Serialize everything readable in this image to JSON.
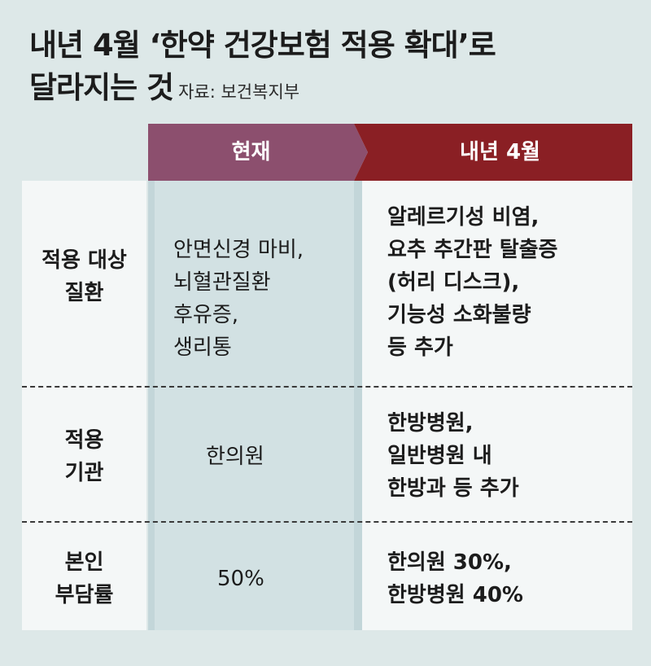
{
  "title": {
    "line1": "내년 4월 ‘한약 건강보험 적용 확대’로",
    "line2": "달라지는 것",
    "source": "자료: 보건복지부"
  },
  "columns": {
    "current": "현재",
    "next_april": "내년 4월"
  },
  "rows": [
    {
      "label": "적용 대상\n질환",
      "current": "안면신경 마비,\n뇌혈관질환\n후유증,\n생리통",
      "next": "알레르기성 비염,\n요추 추간판 탈출증\n(허리 디스크),\n기능성 소화불량\n등 추가"
    },
    {
      "label": "적용\n기관",
      "current": "한의원",
      "next": "한방병원,\n일반병원 내\n한방과 등 추가"
    },
    {
      "label": "본인\n부담률",
      "current": "50%",
      "next": "한의원 30%,\n한방병원 40%"
    }
  ]
}
